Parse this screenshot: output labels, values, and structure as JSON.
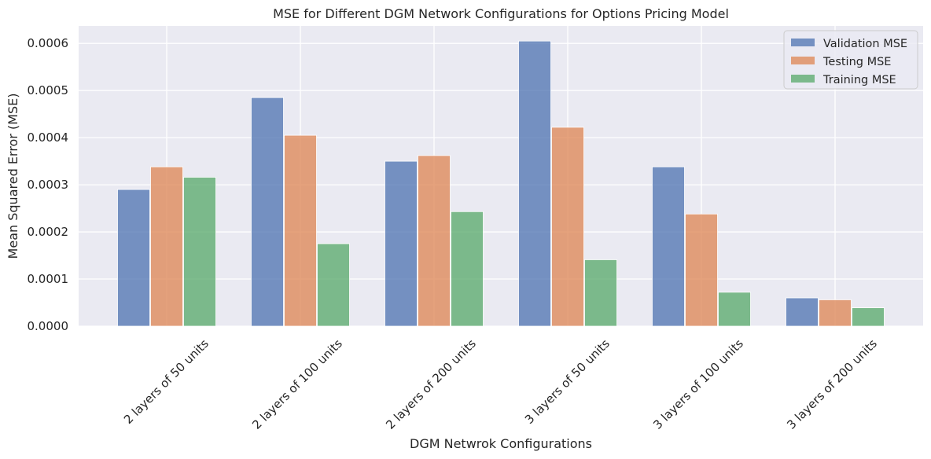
{
  "chart_data": {
    "type": "bar",
    "title": "MSE for Different DGM Network Configurations for Options Pricing Model",
    "xlabel": "DGM Netwrok Configurations",
    "ylabel": "Mean Squared Error (MSE)",
    "categories": [
      "2 layers of 50 units",
      "2 layers of 100 units",
      "2 layers of 200 units",
      "3 layers of 50 units",
      "3 layers of 100 units",
      "3 layers of 200 units"
    ],
    "series": [
      {
        "name": "Validation MSE",
        "color": "#4c72b0",
        "values": [
          0.00029,
          0.000485,
          0.00035,
          0.000605,
          0.000338,
          6e-05
        ]
      },
      {
        "name": "Testing MSE",
        "color": "#dd8452",
        "values": [
          0.000338,
          0.000405,
          0.000362,
          0.000422,
          0.000238,
          5.6e-05
        ]
      },
      {
        "name": "Training MSE",
        "color": "#55a868",
        "values": [
          0.000316,
          0.000175,
          0.000243,
          0.000141,
          7.2e-05,
          3.9e-05
        ]
      }
    ],
    "ylim": [
      0,
      0.000637
    ],
    "yticks": [
      "0.0000",
      "0.0001",
      "0.0002",
      "0.0003",
      "0.0004",
      "0.0005",
      "0.0006"
    ],
    "ytick_values": [
      0,
      0.0001,
      0.0002,
      0.0003,
      0.0004,
      0.0005,
      0.0006
    ],
    "grid": true,
    "legend_position": "top-right",
    "background": "#eaeaf2"
  }
}
